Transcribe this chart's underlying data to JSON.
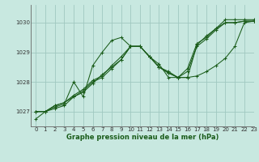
{
  "title": "Graphe pression niveau de la mer (hPa)",
  "background_color": "#c8e8e0",
  "grid_color": "#a0c8c0",
  "line_color": "#1a5c1a",
  "marker_color": "#1a5c1a",
  "xlim": [
    -0.5,
    23
  ],
  "ylim": [
    1026.5,
    1030.6
  ],
  "yticks": [
    1027,
    1028,
    1029,
    1030
  ],
  "xticks": [
    0,
    1,
    2,
    3,
    4,
    5,
    6,
    7,
    8,
    9,
    10,
    11,
    12,
    13,
    14,
    15,
    16,
    17,
    18,
    19,
    20,
    21,
    22,
    23
  ],
  "series": [
    [
      1026.75,
      1027.0,
      1027.1,
      1027.2,
      1027.5,
      1027.65,
      1027.95,
      1028.25,
      1028.5,
      1028.75,
      1029.2,
      1029.2,
      1028.85,
      1028.5,
      1028.35,
      1028.15,
      1028.15,
      1028.2,
      1028.35,
      1028.55,
      1028.8,
      1029.2,
      1030.0,
      1030.05
    ],
    [
      1027.0,
      1027.0,
      1027.15,
      1027.25,
      1028.0,
      1027.5,
      1028.55,
      1029.0,
      1029.4,
      1029.5,
      1029.2,
      1029.2,
      1028.85,
      1028.6,
      1028.15,
      1028.15,
      1028.15,
      1029.25,
      1029.55,
      1029.8,
      1030.1,
      1030.1,
      1030.1,
      1030.1
    ],
    [
      1027.0,
      1027.0,
      1027.2,
      1027.3,
      1027.55,
      1027.75,
      1028.05,
      1028.2,
      1028.55,
      1028.85,
      1029.2,
      1029.2,
      1028.85,
      1028.5,
      1028.3,
      1028.15,
      1028.45,
      1029.3,
      1029.5,
      1029.8,
      1030.0,
      1030.0,
      1030.05,
      1030.05
    ],
    [
      1027.0,
      1027.0,
      1027.2,
      1027.3,
      1027.5,
      1027.7,
      1028.0,
      1028.15,
      1028.45,
      1028.75,
      1029.2,
      1029.2,
      1028.85,
      1028.5,
      1028.3,
      1028.15,
      1028.35,
      1029.2,
      1029.45,
      1029.75,
      1030.0,
      1030.0,
      1030.05,
      1030.05
    ]
  ]
}
